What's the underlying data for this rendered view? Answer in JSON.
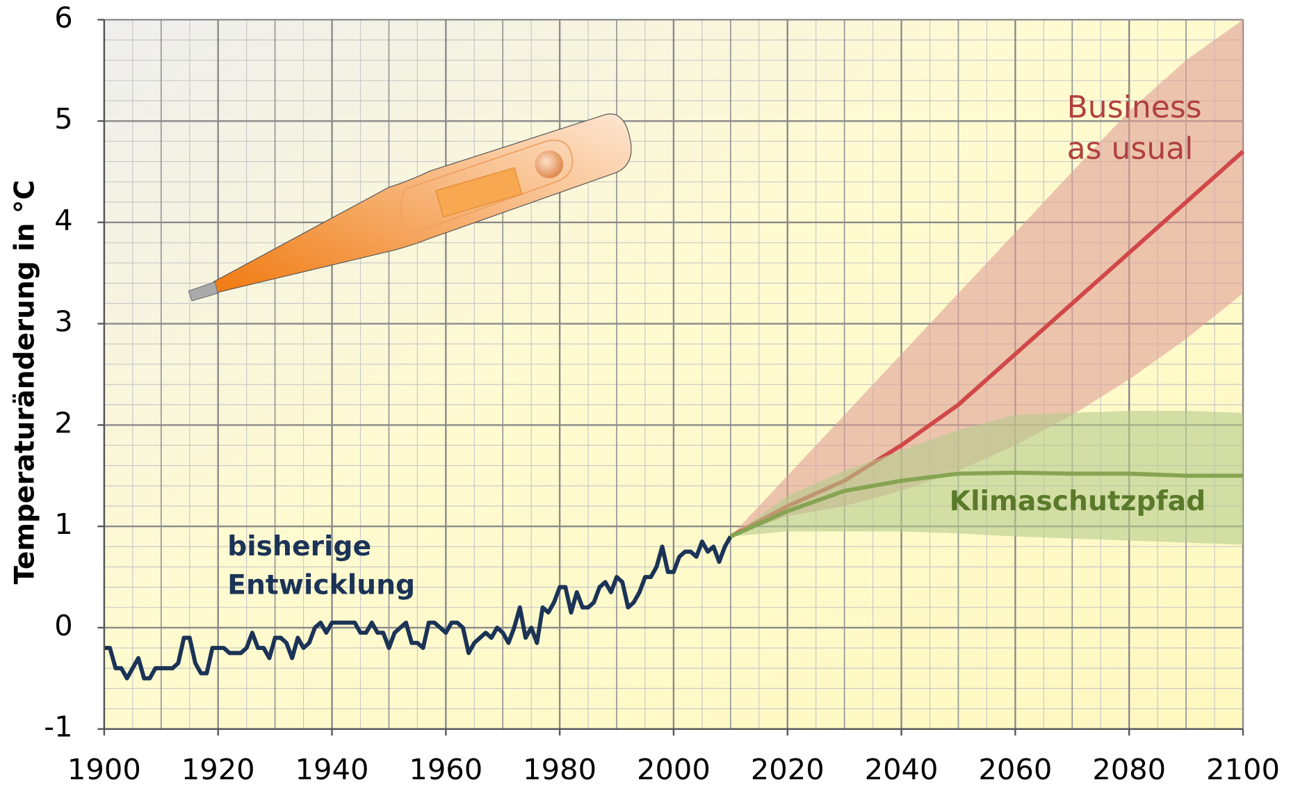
{
  "chart_data": {
    "type": "line",
    "ylabel": "Temperaturänderung in °C",
    "xlim": [
      1900,
      2100
    ],
    "ylim": [
      -1,
      6
    ],
    "xticks": [
      1900,
      1920,
      1940,
      1960,
      1980,
      2000,
      2020,
      2040,
      2060,
      2080,
      2100
    ],
    "yticks": [
      {
        "value": -1,
        "label": "-1"
      },
      0,
      1,
      2,
      3,
      4,
      5,
      6
    ],
    "grid": true,
    "series": [
      {
        "name": "bisherige Entwicklung",
        "label_lines": [
          "bisherige",
          "Entwicklung"
        ],
        "color": "#1b3356",
        "x": [
          1900,
          1901,
          1902,
          1903,
          1904,
          1905,
          1906,
          1907,
          1908,
          1909,
          1910,
          1911,
          1912,
          1913,
          1914,
          1915,
          1916,
          1917,
          1918,
          1919,
          1920,
          1921,
          1922,
          1923,
          1924,
          1925,
          1926,
          1927,
          1928,
          1929,
          1930,
          1931,
          1932,
          1933,
          1934,
          1935,
          1936,
          1937,
          1938,
          1939,
          1940,
          1941,
          1942,
          1943,
          1944,
          1945,
          1946,
          1947,
          1948,
          1949,
          1950,
          1951,
          1952,
          1953,
          1954,
          1955,
          1956,
          1957,
          1958,
          1959,
          1960,
          1961,
          1962,
          1963,
          1964,
          1965,
          1966,
          1967,
          1968,
          1969,
          1970,
          1971,
          1972,
          1973,
          1974,
          1975,
          1976,
          1977,
          1978,
          1979,
          1980,
          1981,
          1982,
          1983,
          1984,
          1985,
          1986,
          1987,
          1988,
          1989,
          1990,
          1991,
          1992,
          1993,
          1994,
          1995,
          1996,
          1997,
          1998,
          1999,
          2000,
          2001,
          2002,
          2003,
          2004,
          2005,
          2006,
          2007,
          2008,
          2009,
          2010
        ],
        "values": [
          -0.2,
          -0.2,
          -0.4,
          -0.4,
          -0.5,
          -0.4,
          -0.3,
          -0.5,
          -0.5,
          -0.4,
          -0.4,
          -0.4,
          -0.4,
          -0.35,
          -0.1,
          -0.1,
          -0.35,
          -0.45,
          -0.45,
          -0.2,
          -0.2,
          -0.2,
          -0.25,
          -0.25,
          -0.25,
          -0.2,
          -0.05,
          -0.2,
          -0.2,
          -0.3,
          -0.1,
          -0.1,
          -0.15,
          -0.3,
          -0.1,
          -0.2,
          -0.15,
          0,
          0.05,
          -0.05,
          0.05,
          0.05,
          0.05,
          0.05,
          0.05,
          -0.05,
          -0.05,
          0.05,
          -0.05,
          -0.05,
          -0.2,
          -0.05,
          0,
          0.05,
          -0.15,
          -0.15,
          -0.2,
          0.05,
          0.05,
          0,
          -0.05,
          0.05,
          0.05,
          0,
          -0.25,
          -0.15,
          -0.1,
          -0.05,
          -0.1,
          0,
          -0.05,
          -0.15,
          0,
          0.2,
          -0.1,
          0,
          -0.15,
          0.2,
          0.15,
          0.25,
          0.4,
          0.4,
          0.15,
          0.35,
          0.2,
          0.2,
          0.25,
          0.4,
          0.45,
          0.35,
          0.5,
          0.45,
          0.2,
          0.25,
          0.35,
          0.5,
          0.5,
          0.6,
          0.8,
          0.55,
          0.55,
          0.7,
          0.75,
          0.75,
          0.7,
          0.85,
          0.75,
          0.8,
          0.65,
          0.8,
          0.9
        ]
      },
      {
        "name": "Business as usual",
        "label_lines": [
          "Business",
          "as usual"
        ],
        "color": "#d04848",
        "band_color": "#e0a098",
        "x": [
          2010,
          2020,
          2030,
          2040,
          2050,
          2060,
          2070,
          2080,
          2090,
          2100
        ],
        "values": [
          0.9,
          1.2,
          1.45,
          1.8,
          2.2,
          2.7,
          3.2,
          3.7,
          4.2,
          4.7
        ],
        "lower": [
          0.9,
          1.1,
          1.2,
          1.35,
          1.55,
          1.8,
          2.1,
          2.45,
          2.85,
          3.3
        ],
        "upper": [
          0.9,
          1.5,
          2.1,
          2.7,
          3.3,
          3.9,
          4.5,
          5.1,
          5.6,
          6.0
        ]
      },
      {
        "name": "Klimaschutzpfad",
        "label_lines": [
          "Klimaschutzpfad"
        ],
        "color": "#86a452",
        "band_color": "#b4cc8c",
        "x": [
          2010,
          2020,
          2030,
          2040,
          2050,
          2060,
          2070,
          2080,
          2090,
          2100
        ],
        "values": [
          0.9,
          1.15,
          1.35,
          1.45,
          1.52,
          1.53,
          1.52,
          1.52,
          1.5,
          1.5
        ],
        "lower": [
          0.9,
          0.95,
          0.95,
          0.95,
          0.93,
          0.9,
          0.88,
          0.86,
          0.84,
          0.82
        ],
        "upper": [
          0.9,
          1.3,
          1.55,
          1.75,
          1.95,
          2.1,
          2.12,
          2.14,
          2.14,
          2.12
        ]
      }
    ]
  }
}
